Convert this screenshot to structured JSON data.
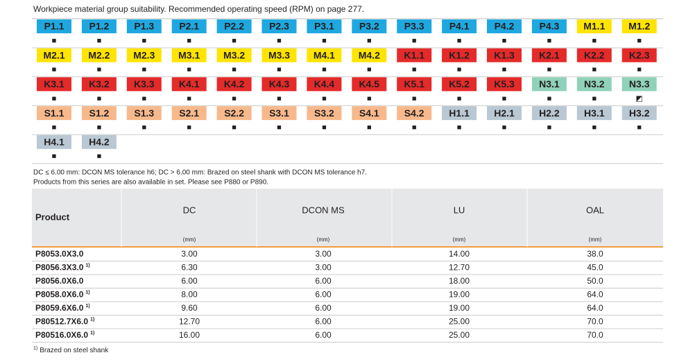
{
  "caption": "Workpiece material group suitability. Recommended operating speed (RPM) on page 277.",
  "materials": {
    "rows": [
      [
        {
          "code": "P1.1",
          "mark": "■"
        },
        {
          "code": "P1.2",
          "mark": "■"
        },
        {
          "code": "P1.3",
          "mark": "■"
        },
        {
          "code": "P2.1",
          "mark": "■"
        },
        {
          "code": "P2.2",
          "mark": "■"
        },
        {
          "code": "P2.3",
          "mark": "■"
        },
        {
          "code": "P3.1",
          "mark": "■"
        },
        {
          "code": "P3.2",
          "mark": "■"
        },
        {
          "code": "P3.3",
          "mark": "■"
        },
        {
          "code": "P4.1",
          "mark": "■"
        },
        {
          "code": "P4.2",
          "mark": "■"
        },
        {
          "code": "P4.3",
          "mark": "■"
        },
        {
          "code": "M1.1",
          "mark": "■"
        },
        {
          "code": "M1.2",
          "mark": "■"
        }
      ],
      [
        {
          "code": "M2.1",
          "mark": "■"
        },
        {
          "code": "M2.2",
          "mark": "■"
        },
        {
          "code": "M2.3",
          "mark": "■"
        },
        {
          "code": "M3.1",
          "mark": "■"
        },
        {
          "code": "M3.2",
          "mark": "■"
        },
        {
          "code": "M3.3",
          "mark": "■"
        },
        {
          "code": "M4.1",
          "mark": "■"
        },
        {
          "code": "M4.2",
          "mark": "■"
        },
        {
          "code": "K1.1",
          "mark": "■"
        },
        {
          "code": "K1.2",
          "mark": "■"
        },
        {
          "code": "K1.3",
          "mark": "■"
        },
        {
          "code": "K2.1",
          "mark": "■"
        },
        {
          "code": "K2.2",
          "mark": "■"
        },
        {
          "code": "K2.3",
          "mark": "■"
        }
      ],
      [
        {
          "code": "K3.1",
          "mark": "■"
        },
        {
          "code": "K3.2",
          "mark": "■"
        },
        {
          "code": "K3.3",
          "mark": "■"
        },
        {
          "code": "K4.1",
          "mark": "■"
        },
        {
          "code": "K4.2",
          "mark": "■"
        },
        {
          "code": "K4.3",
          "mark": "■"
        },
        {
          "code": "K4.4",
          "mark": "■"
        },
        {
          "code": "K4.5",
          "mark": "■"
        },
        {
          "code": "K5.1",
          "mark": "■"
        },
        {
          "code": "K5.2",
          "mark": "■"
        },
        {
          "code": "K5.3",
          "mark": "■"
        },
        {
          "code": "N3.1",
          "mark": "■"
        },
        {
          "code": "N3.2",
          "mark": "■"
        },
        {
          "code": "N3.3",
          "mark": "◩"
        }
      ],
      [
        {
          "code": "S1.1",
          "mark": "■"
        },
        {
          "code": "S1.2",
          "mark": "■"
        },
        {
          "code": "S1.3",
          "mark": "■"
        },
        {
          "code": "S2.1",
          "mark": "■"
        },
        {
          "code": "S2.2",
          "mark": "■"
        },
        {
          "code": "S3.1",
          "mark": "■"
        },
        {
          "code": "S3.2",
          "mark": "■"
        },
        {
          "code": "S4.1",
          "mark": "■"
        },
        {
          "code": "S4.2",
          "mark": "■"
        },
        {
          "code": "H1.1",
          "mark": "■"
        },
        {
          "code": "H2.1",
          "mark": "■"
        },
        {
          "code": "H2.2",
          "mark": "■"
        },
        {
          "code": "H3.1",
          "mark": "■"
        },
        {
          "code": "H3.2",
          "mark": "■"
        }
      ],
      [
        {
          "code": "H4.1",
          "mark": "■"
        },
        {
          "code": "H4.2",
          "mark": "■"
        }
      ]
    ]
  },
  "notes": [
    "DC ≤ 6.00 mm: DCON MS tolerance h6; DC > 6.00 mm: Brazed on steel shank with DCON MS tolerance h7.",
    "Products from this series are also available in set. Please see P880 or P890."
  ],
  "table": {
    "header": [
      "Product",
      "DC",
      "DCON MS",
      "LU",
      "OAL"
    ],
    "units": [
      "(mm)",
      "(mm)",
      "(mm)",
      "(mm)"
    ],
    "rows": [
      {
        "product": "P8053.0X3.0",
        "cells": [
          "3.00",
          "3.00",
          "14.00",
          "38.0"
        ]
      },
      {
        "product": "P8056.3X3.0",
        "note": "1)",
        "cells": [
          "6.30",
          "3.00",
          "12.70",
          "45.0"
        ]
      },
      {
        "product": "P8056.0X6.0",
        "cells": [
          "6.00",
          "6.00",
          "18.00",
          "50.0"
        ]
      },
      {
        "product": "P8058.0X6.0",
        "note": "1)",
        "cells": [
          "8.00",
          "6.00",
          "19.00",
          "64.0"
        ]
      },
      {
        "product": "P8059.6X6.0",
        "note": "1)",
        "cells": [
          "9.60",
          "6.00",
          "19.00",
          "64.0"
        ]
      },
      {
        "product": "P80512.7X6.0",
        "note": "1)",
        "cells": [
          "12.70",
          "6.00",
          "25.00",
          "70.0"
        ]
      },
      {
        "product": "P80516.0X6.0",
        "note": "1)",
        "cells": [
          "16.00",
          "6.00",
          "25.00",
          "70.0"
        ]
      }
    ]
  },
  "footnote": {
    "mark": "1)",
    "text": "Brazed on steel shank"
  }
}
